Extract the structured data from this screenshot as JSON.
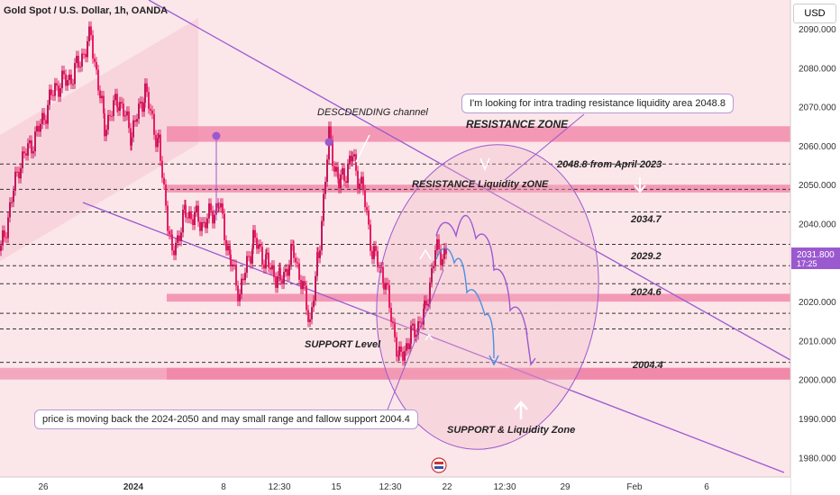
{
  "header": {
    "title": "Gold Spot / U.S. Dollar, 1h, OANDA",
    "currency": "USD"
  },
  "price_axis": {
    "ticks": [
      "2090.000",
      "2080.000",
      "2070.000",
      "2060.000",
      "2050.000",
      "2040.000",
      "2030.000",
      "2020.000",
      "2010.000",
      "2000.000",
      "1990.000",
      "1980.000"
    ],
    "current_price": "2031.800",
    "countdown": "17:25"
  },
  "time_axis": {
    "ticks": [
      "26",
      "2024",
      "8",
      "12:30",
      "15",
      "12:30",
      "22",
      "12:30",
      "29",
      "Feb",
      "6"
    ]
  },
  "annotations": {
    "descending_channel": "DESCDENDING channel",
    "resistance_zone": "RESISTANCE ZONE",
    "resistance_liquidity": "RESISTANCE Liquidity zONE",
    "level_2048": "2048.8 from April 2023",
    "level_2034": "2034.7",
    "level_2029": "2029.2",
    "level_2024": "2024.6",
    "level_2004": "2004.4",
    "support_level": "SUPPORT Level",
    "support_liquidity": "SUPPORT & Liquidity Zone",
    "callout_top": "I'm looking for intra trading resistance liquidity area 2048.8",
    "callout_bottom": "price is moving  back the 2024-2050 and may small range and fallow support 2004.4"
  },
  "colors": {
    "zone": "#f07ea3",
    "channel": "#9b59d0",
    "projection_purple": "#9b59d0",
    "projection_blue": "#4a90e2",
    "candle_up": "#c2185b",
    "candle_down": "#e91e63"
  },
  "chart_data": {
    "type": "candlestick",
    "symbol": "XAUUSD",
    "timeframe": "1h",
    "ylim": [
      1975,
      2096
    ],
    "horizontal_levels": [
      2055.3,
      2048.8,
      2043.0,
      2034.7,
      2029.2,
      2024.6,
      2017.0,
      2013.0,
      2004.4
    ],
    "zones": [
      {
        "name": "RESISTANCE ZONE",
        "from": 2061,
        "to": 2065
      },
      {
        "name": "RESISTANCE Liquidity zONE",
        "from": 2048,
        "to": 2050
      },
      {
        "name": "2024.6",
        "from": 2020,
        "to": 2022
      },
      {
        "name": "SUPPORT & Liquidity Zone",
        "from": 2000,
        "to": 2003
      }
    ],
    "current_price": 2031.8,
    "price_path": [
      {
        "t": 0,
        "p": 2033
      },
      {
        "t": 20,
        "p": 2055
      },
      {
        "t": 40,
        "p": 2063
      },
      {
        "t": 60,
        "p": 2075
      },
      {
        "t": 80,
        "p": 2078
      },
      {
        "t": 100,
        "p": 2088
      },
      {
        "t": 115,
        "p": 2065
      },
      {
        "t": 130,
        "p": 2072
      },
      {
        "t": 145,
        "p": 2063
      },
      {
        "t": 160,
        "p": 2074
      },
      {
        "t": 175,
        "p": 2060
      },
      {
        "t": 190,
        "p": 2032
      },
      {
        "t": 205,
        "p": 2043
      },
      {
        "t": 225,
        "p": 2040
      },
      {
        "t": 242,
        "p": 2045
      },
      {
        "t": 255,
        "p": 2030
      },
      {
        "t": 265,
        "p": 2022
      },
      {
        "t": 280,
        "p": 2036
      },
      {
        "t": 295,
        "p": 2030
      },
      {
        "t": 310,
        "p": 2025
      },
      {
        "t": 325,
        "p": 2033
      },
      {
        "t": 343,
        "p": 2015
      },
      {
        "t": 352,
        "p": 2031
      },
      {
        "t": 364,
        "p": 2062
      },
      {
        "t": 375,
        "p": 2050
      },
      {
        "t": 390,
        "p": 2057
      },
      {
        "t": 402,
        "p": 2048
      },
      {
        "t": 412,
        "p": 2033
      },
      {
        "t": 425,
        "p": 2026
      },
      {
        "t": 442,
        "p": 2005
      },
      {
        "t": 455,
        "p": 2011
      },
      {
        "t": 470,
        "p": 2017
      },
      {
        "t": 482,
        "p": 2033
      },
      {
        "t": 495,
        "p": 2032
      }
    ]
  }
}
